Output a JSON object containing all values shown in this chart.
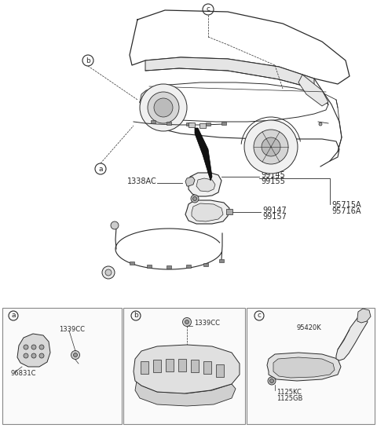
{
  "bg_color": "#ffffff",
  "line_color": "#2a2a2a",
  "text_color": "#2a2a2a",
  "gray1": "#cccccc",
  "gray2": "#e8e8e8",
  "gray3": "#aaaaaa",
  "black": "#111111",
  "labels": {
    "part_1338AC": "1338AC",
    "part_99145": "99145",
    "part_99155": "99155",
    "part_95715A": "95715A",
    "part_95716A": "95716A",
    "part_99147": "99147",
    "part_99157": "99157",
    "sub_a_96831C": "96831C",
    "sub_a_1339CC": "1339CC",
    "sub_b_1339CC": "1339CC",
    "sub_c_95420K": "95420K",
    "sub_c_1125KC": "1125KC",
    "sub_c_1125GB": "1125GB"
  },
  "font_size": 7,
  "font_size_small": 6,
  "font_circle": 6.5
}
